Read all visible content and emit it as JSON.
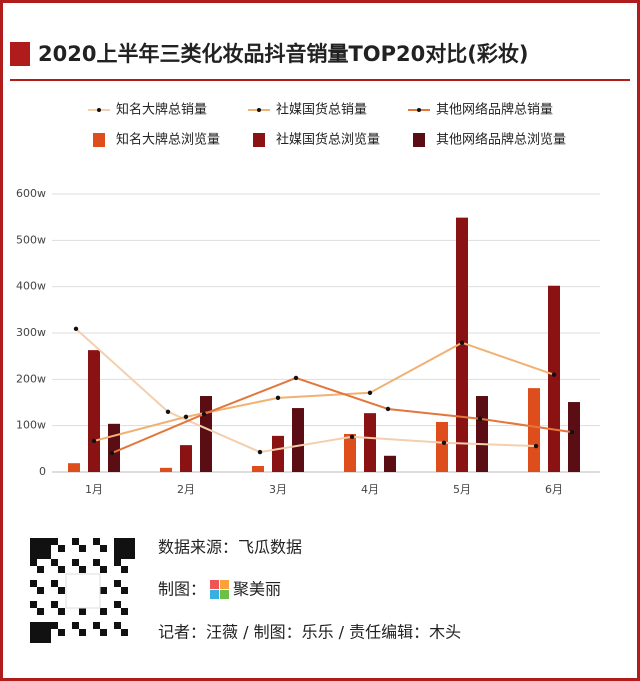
{
  "chart_data": {
    "type": "bar",
    "title": "2020上半年三类化妆品抖音销量TOP20对比(彩妆)",
    "categories": [
      "1月",
      "2月",
      "3月",
      "4月",
      "5月",
      "6月"
    ],
    "series": [
      {
        "name": "知名大牌总销量",
        "type": "line",
        "color": "#f3cfae",
        "values": [
          309,
          130,
          43,
          76,
          63,
          56
        ]
      },
      {
        "name": "社媒国货总销量",
        "type": "line",
        "color": "#f0b274",
        "values": [
          67,
          119,
          160,
          171,
          279,
          210
        ]
      },
      {
        "name": "其他网络品牌总销量",
        "type": "line",
        "color": "#e3763a",
        "values": [
          41,
          125,
          203,
          136,
          115,
          86
        ]
      },
      {
        "name": "知名大牌总浏览量",
        "type": "bar",
        "color": "#de4d1c",
        "values": [
          19,
          9,
          13,
          82,
          108,
          181
        ]
      },
      {
        "name": "社媒国货总浏览量",
        "type": "bar",
        "color": "#8a1212",
        "values": [
          263,
          58,
          78,
          127,
          549,
          402
        ]
      },
      {
        "name": "其他网络品牌总浏览量",
        "type": "bar",
        "color": "#5a0e14",
        "values": [
          104,
          164,
          138,
          35,
          164,
          151
        ]
      }
    ],
    "ylim": [
      0,
      600
    ],
    "yticks": [
      0,
      {
        "value": 100,
        "label": "100w"
      },
      {
        "value": 200,
        "label": "200w"
      },
      {
        "value": 300,
        "label": "300w"
      },
      {
        "value": 400,
        "label": "400w"
      },
      {
        "value": 500,
        "label": "500w"
      },
      {
        "value": 600,
        "label": "600w"
      }
    ],
    "grid": true
  },
  "footer": {
    "source": "数据来源：飞瓜数据",
    "credit_label": "制图：",
    "brand": "聚美丽",
    "byline": "记者：汪薇 / 制图：乐乐 / 责任编辑：木头"
  }
}
